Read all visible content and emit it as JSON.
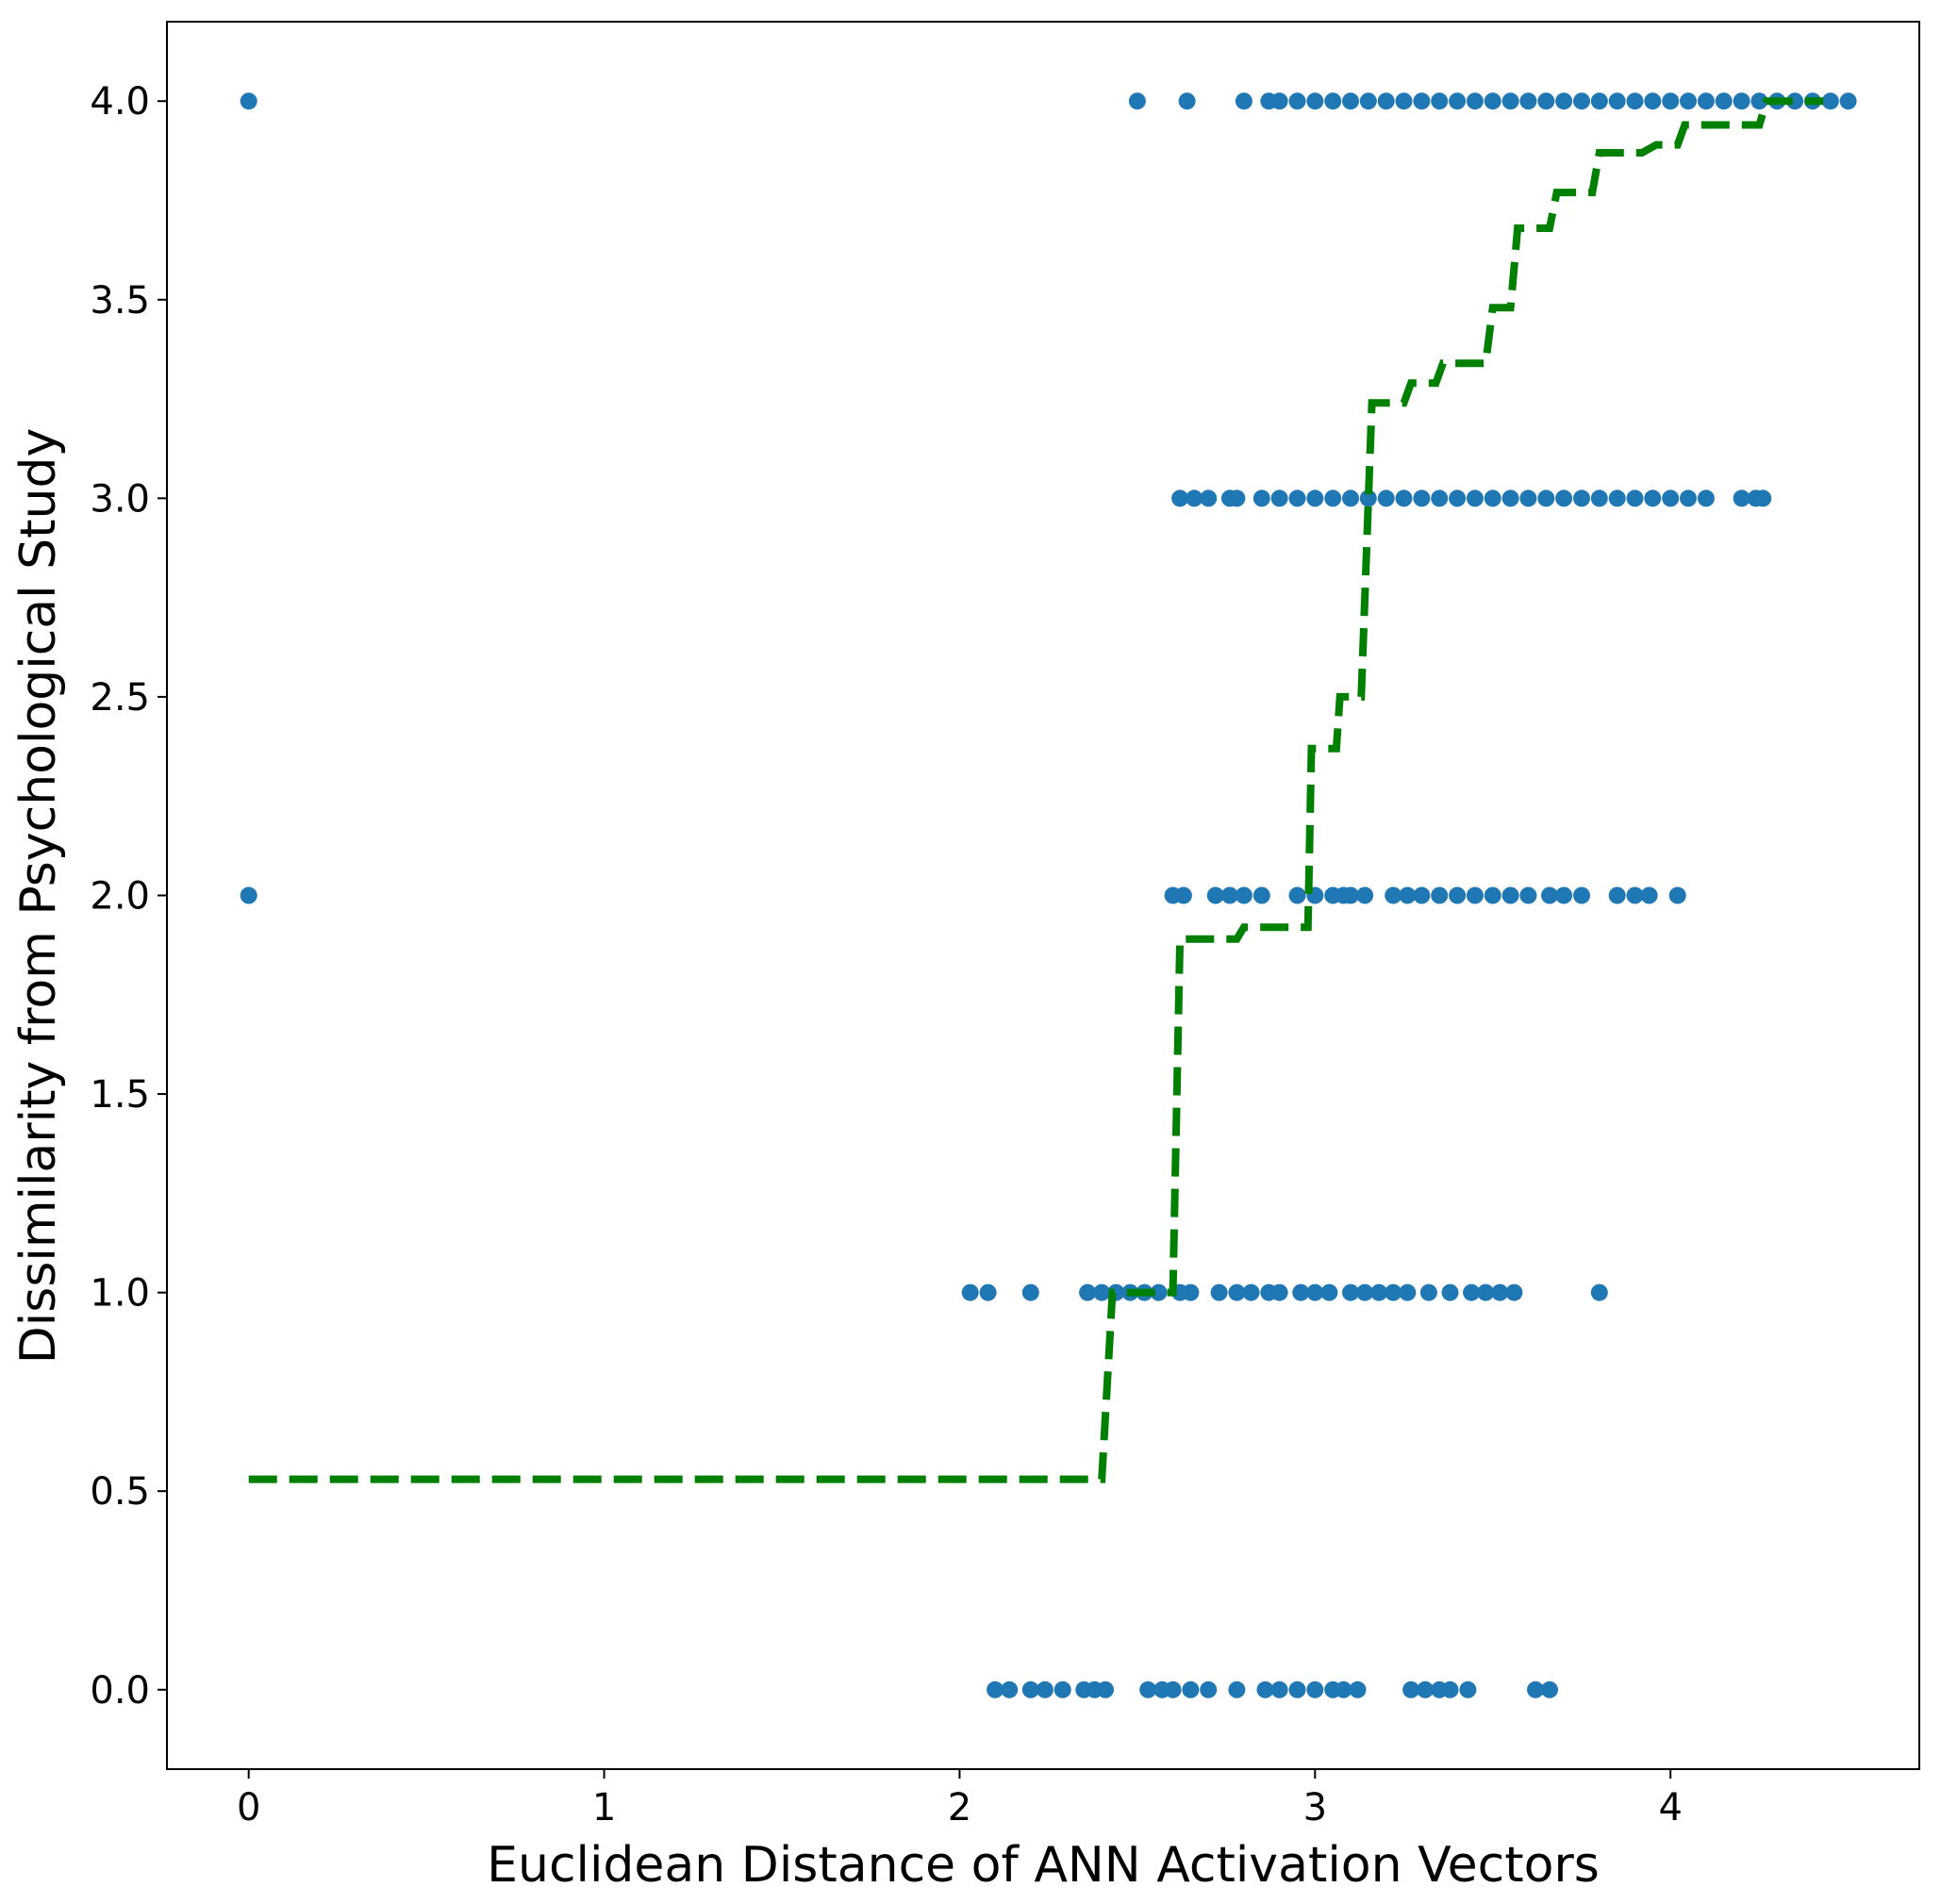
{
  "chart_data": {
    "type": "scatter",
    "xlabel": "Euclidean Distance of ANN Activation Vectors",
    "ylabel": "Dissimilarity from Psychological Study",
    "xlim": [
      -0.23,
      4.7
    ],
    "ylim": [
      -0.2,
      4.2
    ],
    "xticks": [
      0,
      1,
      2,
      3,
      4
    ],
    "xtick_labels": [
      "0",
      "1",
      "2",
      "3",
      "4"
    ],
    "yticks": [
      0.0,
      0.5,
      1.0,
      1.5,
      2.0,
      2.5,
      3.0,
      3.5,
      4.0
    ],
    "ytick_labels": [
      "0.0",
      "0.5",
      "1.0",
      "1.5",
      "2.0",
      "2.5",
      "3.0",
      "3.5",
      "4.0"
    ],
    "grid": false,
    "colors": {
      "points": "#1f77b4",
      "fit_line": "#008000"
    },
    "series": [
      {
        "kind": "scatter",
        "points": [
          [
            0.0,
            4
          ],
          [
            0.0,
            2
          ],
          [
            2.5,
            4
          ],
          [
            2.64,
            4
          ],
          [
            2.8,
            4
          ],
          [
            2.87,
            4
          ],
          [
            2.9,
            4
          ],
          [
            2.95,
            4
          ],
          [
            3.0,
            4
          ],
          [
            3.05,
            4
          ],
          [
            3.1,
            4
          ],
          [
            3.15,
            4
          ],
          [
            3.2,
            4
          ],
          [
            3.25,
            4
          ],
          [
            3.3,
            4
          ],
          [
            3.35,
            4
          ],
          [
            3.4,
            4
          ],
          [
            3.45,
            4
          ],
          [
            3.5,
            4
          ],
          [
            3.55,
            4
          ],
          [
            3.6,
            4
          ],
          [
            3.65,
            4
          ],
          [
            3.7,
            4
          ],
          [
            3.75,
            4
          ],
          [
            3.8,
            4
          ],
          [
            3.85,
            4
          ],
          [
            3.9,
            4
          ],
          [
            3.95,
            4
          ],
          [
            4.0,
            4
          ],
          [
            4.05,
            4
          ],
          [
            4.1,
            4
          ],
          [
            4.15,
            4
          ],
          [
            4.2,
            4
          ],
          [
            4.25,
            4
          ],
          [
            4.3,
            4
          ],
          [
            4.35,
            4
          ],
          [
            4.4,
            4
          ],
          [
            4.45,
            4
          ],
          [
            4.5,
            4
          ],
          [
            2.62,
            3
          ],
          [
            2.66,
            3
          ],
          [
            2.7,
            3
          ],
          [
            2.76,
            3
          ],
          [
            2.78,
            3
          ],
          [
            2.85,
            3
          ],
          [
            2.9,
            3
          ],
          [
            2.95,
            3
          ],
          [
            3.0,
            3
          ],
          [
            3.05,
            3
          ],
          [
            3.1,
            3
          ],
          [
            3.15,
            3
          ],
          [
            3.2,
            3
          ],
          [
            3.25,
            3
          ],
          [
            3.3,
            3
          ],
          [
            3.35,
            3
          ],
          [
            3.4,
            3
          ],
          [
            3.45,
            3
          ],
          [
            3.5,
            3
          ],
          [
            3.55,
            3
          ],
          [
            3.6,
            3
          ],
          [
            3.65,
            3
          ],
          [
            3.7,
            3
          ],
          [
            3.75,
            3
          ],
          [
            3.8,
            3
          ],
          [
            3.85,
            3
          ],
          [
            3.9,
            3
          ],
          [
            3.95,
            3
          ],
          [
            4.0,
            3
          ],
          [
            4.05,
            3
          ],
          [
            4.1,
            3
          ],
          [
            4.2,
            3
          ],
          [
            4.24,
            3
          ],
          [
            4.26,
            3
          ],
          [
            2.6,
            2
          ],
          [
            2.63,
            2
          ],
          [
            2.72,
            2
          ],
          [
            2.76,
            2
          ],
          [
            2.8,
            2
          ],
          [
            2.85,
            2
          ],
          [
            2.95,
            2
          ],
          [
            3.0,
            2
          ],
          [
            3.05,
            2
          ],
          [
            3.08,
            2
          ],
          [
            3.1,
            2
          ],
          [
            3.14,
            2
          ],
          [
            3.22,
            2
          ],
          [
            3.26,
            2
          ],
          [
            3.3,
            2
          ],
          [
            3.35,
            2
          ],
          [
            3.4,
            2
          ],
          [
            3.45,
            2
          ],
          [
            3.5,
            2
          ],
          [
            3.55,
            2
          ],
          [
            3.6,
            2
          ],
          [
            3.66,
            2
          ],
          [
            3.7,
            2
          ],
          [
            3.75,
            2
          ],
          [
            3.85,
            2
          ],
          [
            3.9,
            2
          ],
          [
            3.94,
            2
          ],
          [
            4.02,
            2
          ],
          [
            2.03,
            1
          ],
          [
            2.08,
            1
          ],
          [
            2.2,
            1
          ],
          [
            2.36,
            1
          ],
          [
            2.4,
            1
          ],
          [
            2.44,
            1
          ],
          [
            2.48,
            1
          ],
          [
            2.52,
            1
          ],
          [
            2.56,
            1
          ],
          [
            2.62,
            1
          ],
          [
            2.65,
            1
          ],
          [
            2.73,
            1
          ],
          [
            2.78,
            1
          ],
          [
            2.82,
            1
          ],
          [
            2.87,
            1
          ],
          [
            2.9,
            1
          ],
          [
            2.96,
            1
          ],
          [
            3.0,
            1
          ],
          [
            3.04,
            1
          ],
          [
            3.1,
            1
          ],
          [
            3.14,
            1
          ],
          [
            3.18,
            1
          ],
          [
            3.22,
            1
          ],
          [
            3.26,
            1
          ],
          [
            3.32,
            1
          ],
          [
            3.38,
            1
          ],
          [
            3.44,
            1
          ],
          [
            3.48,
            1
          ],
          [
            3.52,
            1
          ],
          [
            3.56,
            1
          ],
          [
            3.8,
            1
          ],
          [
            2.1,
            0
          ],
          [
            2.14,
            0
          ],
          [
            2.2,
            0
          ],
          [
            2.24,
            0
          ],
          [
            2.29,
            0
          ],
          [
            2.35,
            0
          ],
          [
            2.38,
            0
          ],
          [
            2.41,
            0
          ],
          [
            2.53,
            0
          ],
          [
            2.57,
            0
          ],
          [
            2.6,
            0
          ],
          [
            2.65,
            0
          ],
          [
            2.7,
            0
          ],
          [
            2.78,
            0
          ],
          [
            2.86,
            0
          ],
          [
            2.9,
            0
          ],
          [
            2.95,
            0
          ],
          [
            3.0,
            0
          ],
          [
            3.05,
            0
          ],
          [
            3.08,
            0
          ],
          [
            3.12,
            0
          ],
          [
            3.27,
            0
          ],
          [
            3.31,
            0
          ],
          [
            3.35,
            0
          ],
          [
            3.38,
            0
          ],
          [
            3.43,
            0
          ],
          [
            3.62,
            0
          ],
          [
            3.66,
            0
          ]
        ]
      },
      {
        "kind": "step_line",
        "style": "dashed",
        "points": [
          [
            0.0,
            0.53
          ],
          [
            2.4,
            0.53
          ],
          [
            2.43,
            1.0
          ],
          [
            2.6,
            1.0
          ],
          [
            2.62,
            1.89
          ],
          [
            2.78,
            1.89
          ],
          [
            2.8,
            1.92
          ],
          [
            2.98,
            1.92
          ],
          [
            2.99,
            2.37
          ],
          [
            3.06,
            2.37
          ],
          [
            3.07,
            2.5
          ],
          [
            3.13,
            2.5
          ],
          [
            3.16,
            3.24
          ],
          [
            3.25,
            3.24
          ],
          [
            3.27,
            3.29
          ],
          [
            3.34,
            3.29
          ],
          [
            3.36,
            3.34
          ],
          [
            3.48,
            3.34
          ],
          [
            3.5,
            3.48
          ],
          [
            3.55,
            3.48
          ],
          [
            3.57,
            3.68
          ],
          [
            3.66,
            3.68
          ],
          [
            3.68,
            3.77
          ],
          [
            3.78,
            3.77
          ],
          [
            3.8,
            3.87
          ],
          [
            3.92,
            3.87
          ],
          [
            3.96,
            3.89
          ],
          [
            4.02,
            3.89
          ],
          [
            4.04,
            3.94
          ],
          [
            4.25,
            3.94
          ],
          [
            4.27,
            4.0
          ],
          [
            4.43,
            4.0
          ]
        ]
      }
    ]
  }
}
